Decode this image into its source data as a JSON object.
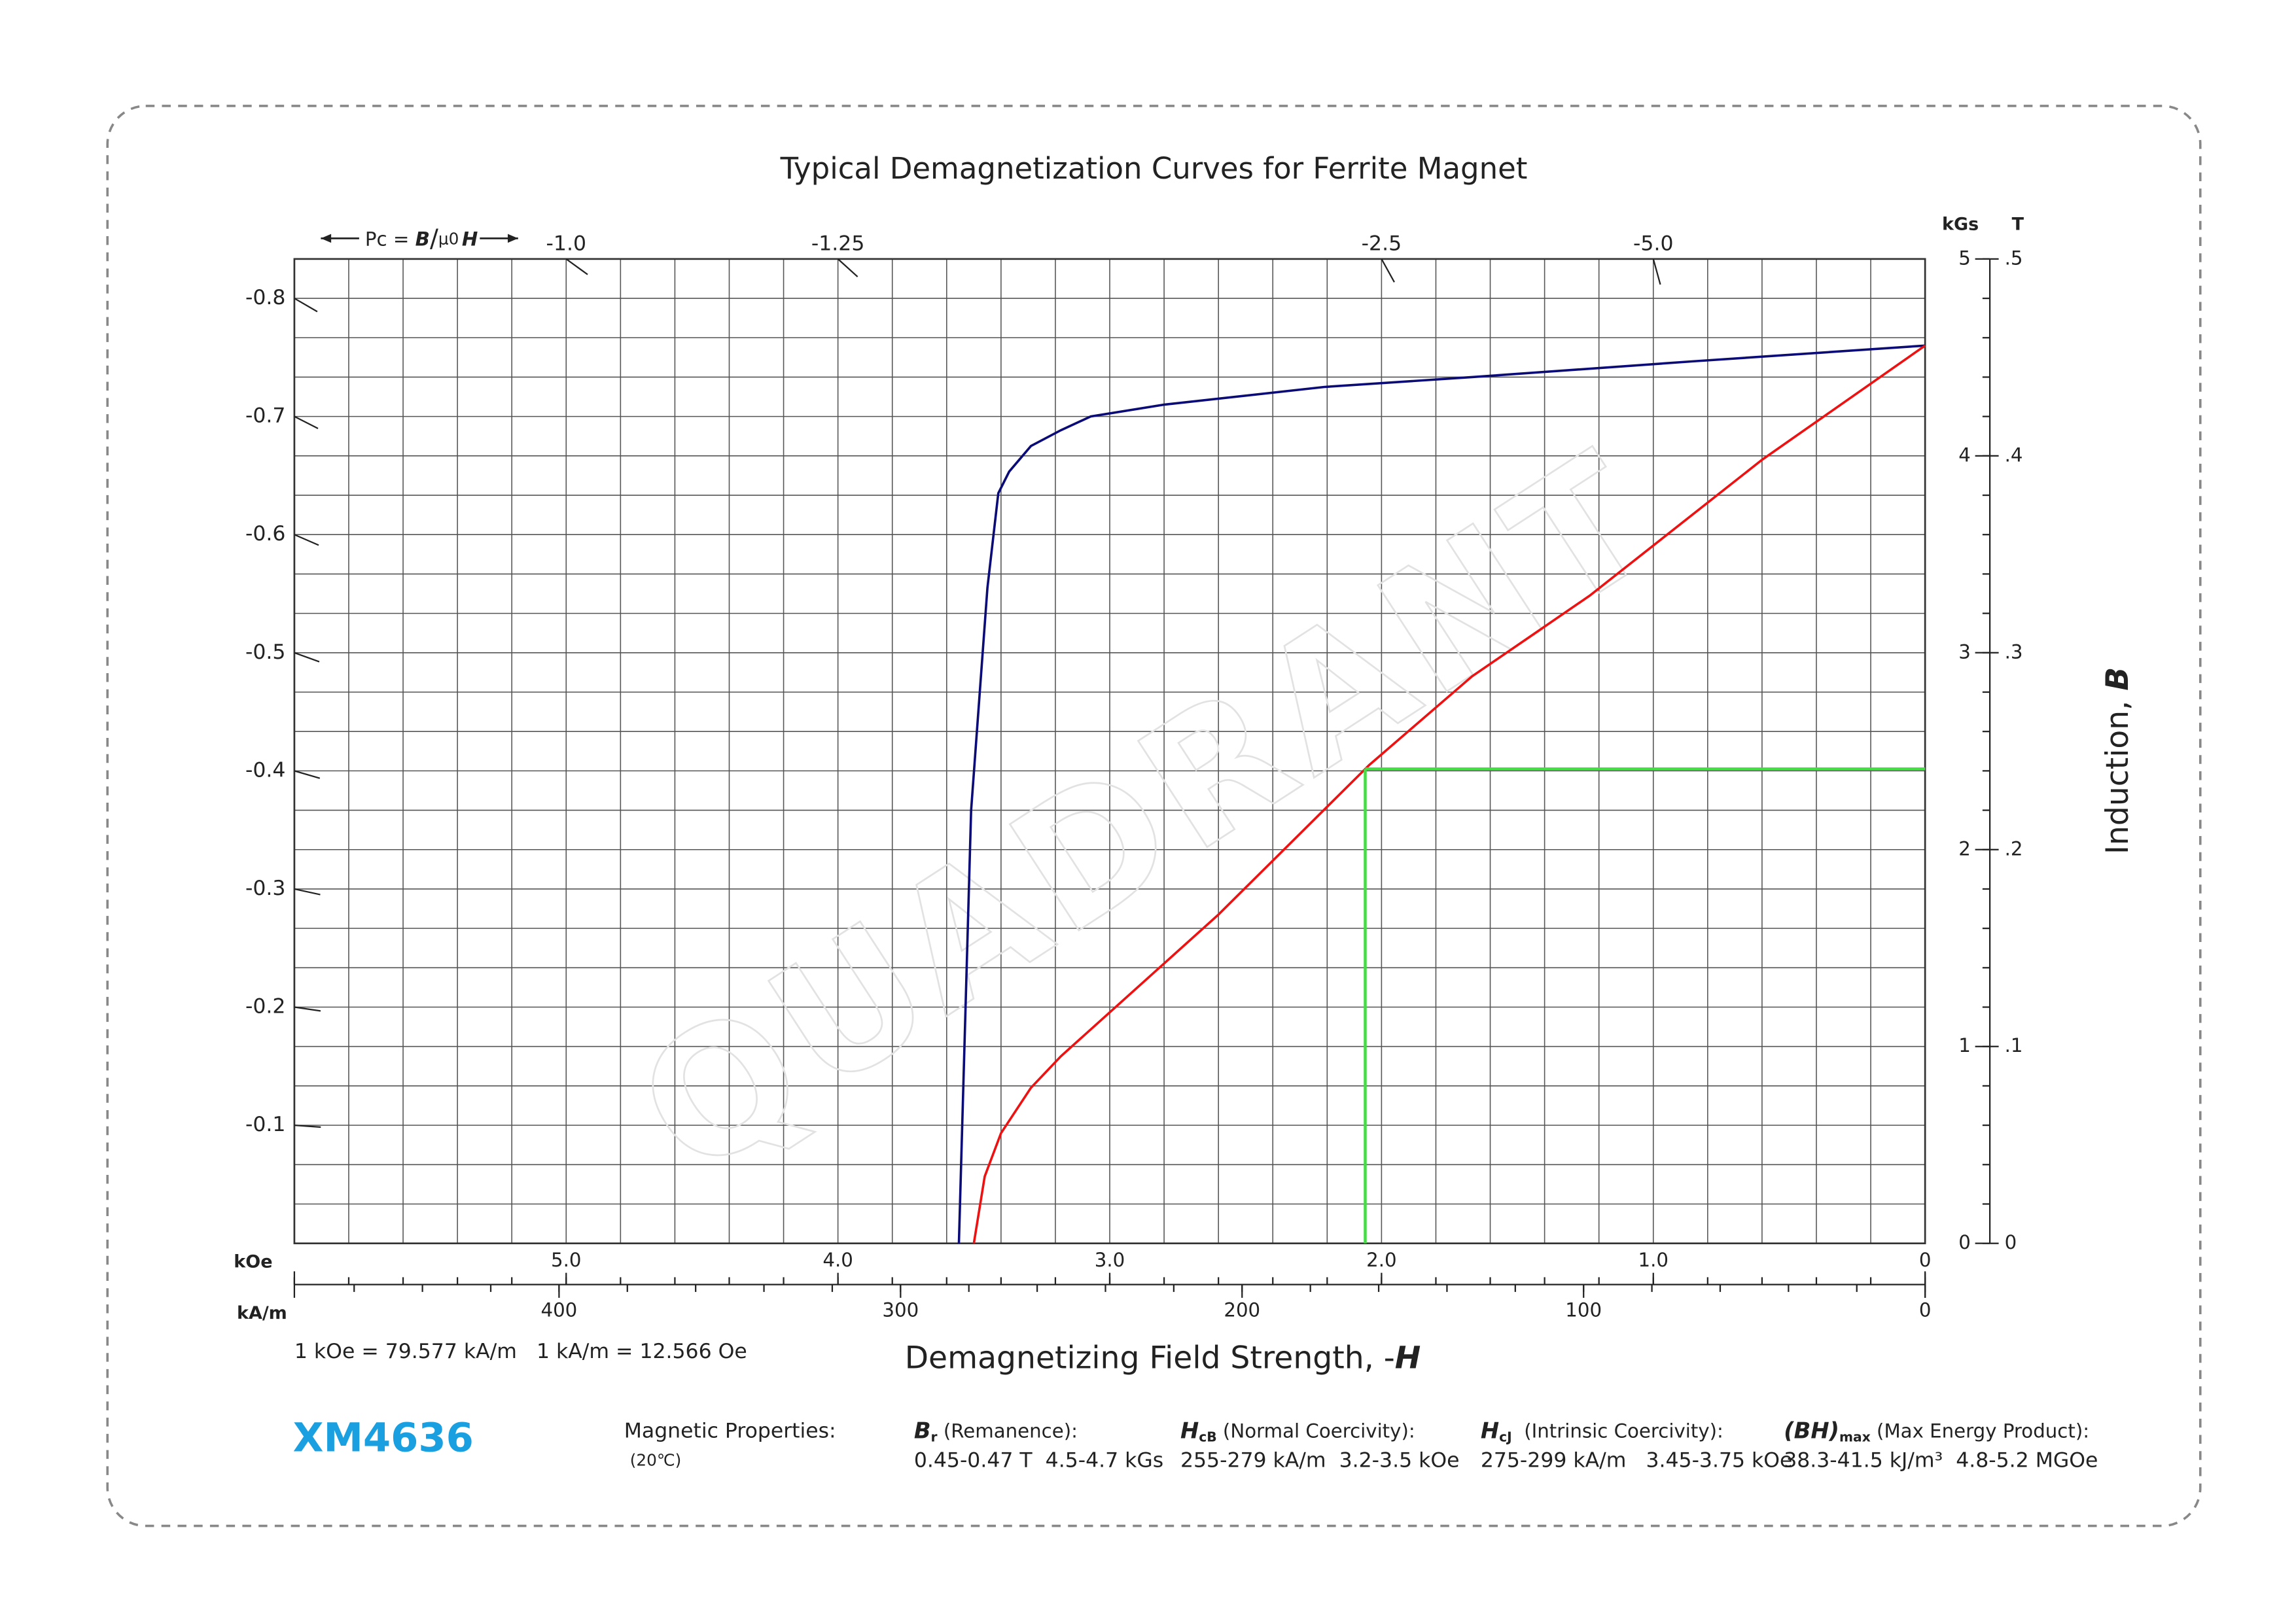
{
  "chart_data": {
    "type": "line",
    "title": "Typical Demagnetization Curves for Ferrite Magnet",
    "x_label": {
      "text": "Demagnetizing Field Strength, -",
      "symbol": "H"
    },
    "y_label": {
      "text": "Induction, ",
      "symbol": "B"
    },
    "x_unit": "kOe",
    "x2_unit": "kA/m",
    "y_unit": "kGs",
    "y2_unit": "T",
    "xlim": [
      6,
      0
    ],
    "xticks": [
      {
        "value": 5,
        "label": "5.0"
      },
      {
        "value": 4,
        "label": "4.0"
      },
      {
        "value": 3,
        "label": "3.0"
      },
      {
        "value": 2,
        "label": "2.0"
      },
      {
        "value": 1,
        "label": "1.0"
      },
      0
    ],
    "x2lim": [
      477.5,
      0
    ],
    "x2ticks": [
      400,
      300,
      200,
      100,
      0
    ],
    "x2_minor_step": 20,
    "ylim": [
      0,
      5
    ],
    "yticks": [
      0,
      1,
      2,
      3,
      4,
      5
    ],
    "y2lim": [
      0,
      0.5
    ],
    "y2ticks": [
      0,
      {
        "value": 0.1,
        "label": ".1"
      },
      {
        "value": 0.2,
        "label": ".2"
      },
      {
        "value": 0.3,
        "label": ".3"
      },
      {
        "value": 0.4,
        "label": ".4"
      },
      {
        "value": 0.5,
        "label": ".5"
      }
    ],
    "grid": {
      "x_step": 0.2,
      "y_step": 0.2
    },
    "permeance": {
      "label": {
        "prefix": "Pc = ",
        "numerator": "B",
        "slash": "/",
        "mu": "μ0",
        "denominator": "H"
      },
      "top_ticks": [
        {
          "value": -1,
          "label": "-1.0"
        },
        -1.25,
        -2.5,
        {
          "value": -5,
          "label": "-5.0"
        }
      ],
      "left_ticks": [
        -0.8,
        -0.7,
        -0.6,
        -0.5,
        -0.4,
        -0.3,
        -0.2,
        -0.1
      ]
    },
    "conversion": "1 kOe = 79.577 kA/m   1 kA/m = 12.566 Oe",
    "series": [
      {
        "color": "#0b0b78",
        "x": [
          0,
          0.855,
          1.667,
          2.21,
          2.8,
          3.07,
          3.18,
          3.29,
          3.37,
          3.41,
          3.45,
          3.51,
          3.555
        ],
        "values": [
          4.56,
          4.48,
          4.4,
          4.35,
          4.26,
          4.2,
          4.13,
          4.05,
          3.92,
          3.81,
          3.33,
          2.2,
          0
        ]
      },
      {
        "color": "#ee1111",
        "x": [
          0,
          0.6,
          1.234,
          1.667,
          2.045,
          2.6,
          3.18,
          3.29,
          3.4,
          3.46,
          3.5
        ],
        "values": [
          4.56,
          3.98,
          3.29,
          2.88,
          2.43,
          1.67,
          0.95,
          0.79,
          0.56,
          0.34,
          0
        ]
      }
    ],
    "operating_point": {
      "x": 2.06,
      "y": 2.41,
      "color": "#44dd44"
    }
  },
  "watermark": "QUADRANT",
  "footer": {
    "grade": "XM4636",
    "properties_title": "Magnetic Properties:",
    "temperature": "(20℃)",
    "properties": [
      {
        "symbol": "B",
        "sub": "r",
        "name": " (Remanence):",
        "value": "0.45-0.47 T  4.5-4.7 kGs"
      },
      {
        "symbol": "H",
        "sub": "cB",
        "name": " (Normal Coercivity):",
        "value": "255-279 kA/m  3.2-3.5 kOe"
      },
      {
        "symbol": "H",
        "sub": "cJ",
        "name": "  (Intrinsic Coercivity):",
        "value": "275-299 kA/m   3.45-3.75 kOe"
      },
      {
        "symbol": "(BH)",
        "sub": "max",
        "name": " (Max Energy Product):",
        "value": "38.3-41.5 kJ/m³  4.8-5.2 MGOe"
      }
    ]
  }
}
